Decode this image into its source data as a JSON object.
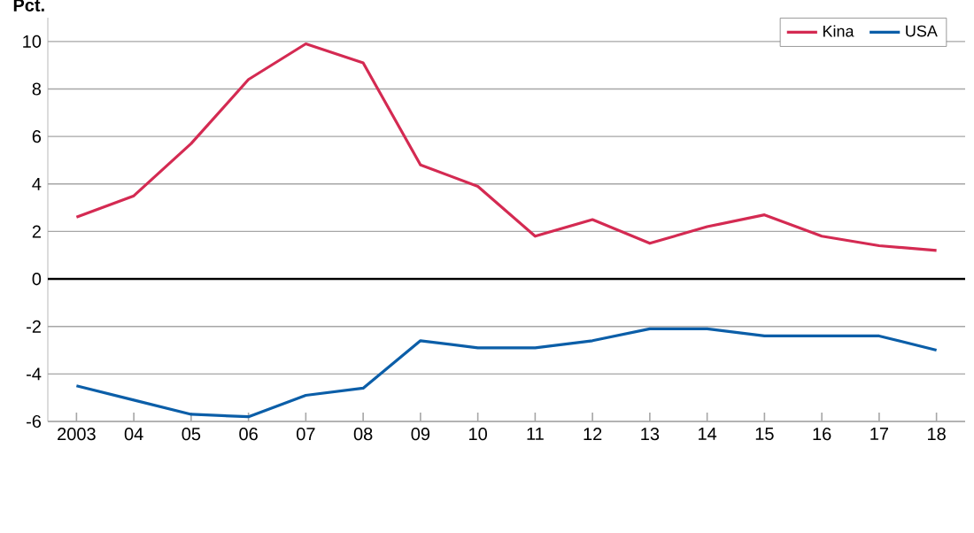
{
  "chart_data": {
    "type": "line",
    "ylabel": "Pct.",
    "categories": [
      "2003",
      "04",
      "05",
      "06",
      "07",
      "08",
      "09",
      "10",
      "11",
      "12",
      "13",
      "14",
      "15",
      "16",
      "17",
      "18"
    ],
    "series": [
      {
        "name": "Kina",
        "color": "#d42a52",
        "values": [
          2.6,
          3.5,
          5.7,
          8.4,
          9.9,
          9.1,
          4.8,
          3.9,
          1.8,
          2.5,
          1.5,
          2.2,
          2.7,
          1.8,
          1.4,
          1.2
        ]
      },
      {
        "name": "USA",
        "color": "#0b5ea8",
        "values": [
          -4.5,
          -5.1,
          -5.7,
          -5.8,
          -4.9,
          -4.6,
          -2.6,
          -2.9,
          -2.9,
          -2.6,
          -2.1,
          -2.1,
          -2.4,
          -2.4,
          -2.4,
          -3.0
        ]
      }
    ],
    "ylim": [
      -6,
      11
    ],
    "yticks": [
      -6,
      -4,
      -2,
      0,
      2,
      4,
      6,
      8,
      10
    ],
    "ref_lines": [
      {
        "axis": "y",
        "value": 0,
        "color": "#000000"
      }
    ],
    "grid": "y",
    "legend": "top right",
    "marker": "none",
    "line_style": "solid"
  }
}
